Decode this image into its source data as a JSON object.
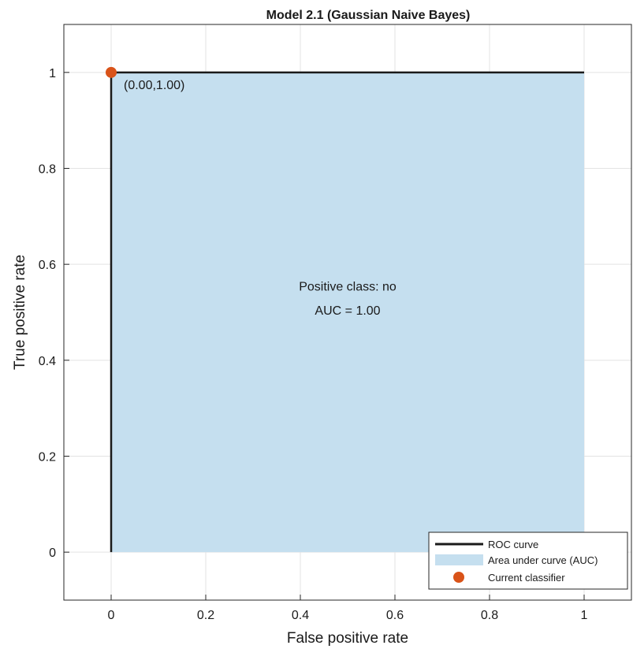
{
  "chart_data": {
    "type": "line",
    "title": "Model 2.1 (Gaussian Naive Bayes)",
    "xlabel": "False positive rate",
    "ylabel": "True positive rate",
    "xlim": [
      -0.1,
      1.1
    ],
    "ylim": [
      -0.1,
      1.1
    ],
    "xticks": [
      0,
      0.2,
      0.4,
      0.6,
      0.8,
      1
    ],
    "yticks": [
      0,
      0.2,
      0.4,
      0.6,
      0.8,
      1
    ],
    "xtick_labels": [
      "0",
      "0.2",
      "0.4",
      "0.6",
      "0.8",
      "1"
    ],
    "ytick_labels": [
      "0",
      "0.2",
      "0.4",
      "0.6",
      "0.8",
      "1"
    ],
    "grid": true,
    "series": [
      {
        "name": "ROC curve",
        "kind": "line",
        "color": "#1a1a1a",
        "x": [
          0,
          0,
          1
        ],
        "y": [
          0,
          1,
          1
        ]
      },
      {
        "name": "Area under curve (AUC)",
        "kind": "area",
        "color": "#c5dfef",
        "x": [
          0,
          0,
          1,
          1
        ],
        "y": [
          0,
          1,
          1,
          0
        ]
      },
      {
        "name": "Current classifier",
        "kind": "scatter",
        "color": "#d95319",
        "x": [
          0.0
        ],
        "y": [
          1.0
        ]
      }
    ],
    "point_label": "(0.00,1.00)",
    "annotations": [
      "Positive class: no",
      "AUC = 1.00"
    ],
    "legend": {
      "position": "bottom-right",
      "entries": [
        "ROC curve",
        "Area under curve (AUC)",
        "Current classifier"
      ]
    }
  }
}
